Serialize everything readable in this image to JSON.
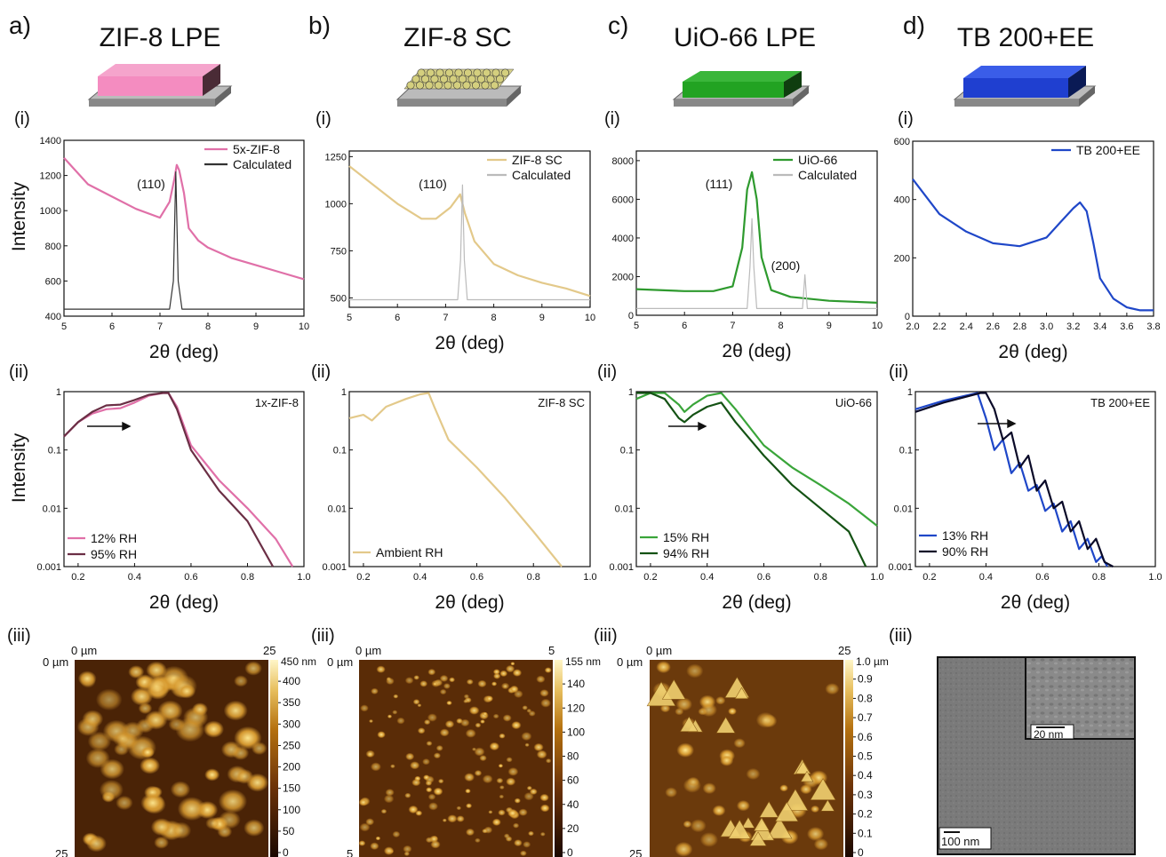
{
  "panels": [
    {
      "letter": "a)",
      "title": "ZIF-8 LPE",
      "color": "#e070a8"
    },
    {
      "letter": "b)",
      "title": "ZIF-8 SC",
      "color": "#e3c98a"
    },
    {
      "letter": "c)",
      "title": "UiO-66 LPE",
      "color": "#2e9a2e"
    },
    {
      "letter": "d)",
      "title": "TB 200+EE",
      "color": "#1f47c8"
    }
  ],
  "labels": {
    "i": "(i)",
    "ii": "(ii)",
    "iii": "(iii)",
    "intensity": "Intensity",
    "two_theta": "2θ (deg)"
  },
  "chart_data": [
    {
      "id": "a-i",
      "type": "line",
      "xlim": [
        5,
        10
      ],
      "ylim": [
        400,
        1400
      ],
      "xticks": [
        "5",
        "6",
        "7",
        "8",
        "9",
        "10"
      ],
      "yticks": [
        "400",
        "600",
        "800",
        "1000",
        "1200",
        "1400"
      ],
      "xlabel": "2θ (deg)",
      "ylabel": "Intensity",
      "peak_label": "(110)",
      "series": [
        {
          "name": "5x-ZIF-8",
          "color": "#e070a8",
          "x": [
            5.0,
            5.5,
            6.0,
            6.5,
            7.0,
            7.2,
            7.3,
            7.35,
            7.4,
            7.5,
            7.6,
            7.8,
            8.0,
            8.5,
            9.0,
            9.5,
            10.0
          ],
          "y": [
            1300,
            1150,
            1080,
            1010,
            960,
            1050,
            1180,
            1260,
            1230,
            1100,
            900,
            830,
            790,
            730,
            690,
            650,
            610
          ]
        },
        {
          "name": "Calculated",
          "color": "#333333",
          "x": [
            5.0,
            7.2,
            7.28,
            7.33,
            7.38,
            7.46,
            10.0
          ],
          "y": [
            440,
            440,
            600,
            1220,
            600,
            440,
            440
          ]
        }
      ]
    },
    {
      "id": "b-i",
      "type": "line",
      "xlim": [
        5,
        10
      ],
      "ylim": [
        450,
        1280
      ],
      "xticks": [
        "5",
        "6",
        "7",
        "8",
        "9",
        "10"
      ],
      "yticks": [
        "500",
        "750",
        "1000",
        "1250"
      ],
      "xlabel": "2θ (deg)",
      "peak_label": "(110)",
      "series": [
        {
          "name": "ZIF-8 SC",
          "color": "#e3c98a",
          "x": [
            5.0,
            5.5,
            6.0,
            6.5,
            6.8,
            7.1,
            7.3,
            7.4,
            7.6,
            8.0,
            8.5,
            9.0,
            9.5,
            10.0
          ],
          "y": [
            1200,
            1100,
            1000,
            920,
            920,
            980,
            1050,
            950,
            800,
            680,
            620,
            580,
            550,
            510
          ]
        },
        {
          "name": "Calculated",
          "color": "#bbbbbb",
          "x": [
            5.0,
            7.25,
            7.31,
            7.35,
            7.39,
            7.45,
            10.0
          ],
          "y": [
            490,
            490,
            700,
            1100,
            700,
            490,
            490
          ]
        }
      ]
    },
    {
      "id": "c-i",
      "type": "line",
      "xlim": [
        5,
        10
      ],
      "ylim": [
        0,
        8500
      ],
      "xticks": [
        "5",
        "6",
        "7",
        "8",
        "9",
        "10"
      ],
      "yticks": [
        "0",
        "2000",
        "4000",
        "6000",
        "8000"
      ],
      "xlabel": "2θ (deg)",
      "peak_labels": [
        "(111)",
        "(200)"
      ],
      "series": [
        {
          "name": "UiO-66",
          "color": "#2e9a2e",
          "x": [
            5.0,
            6.0,
            6.6,
            7.0,
            7.2,
            7.3,
            7.4,
            7.5,
            7.6,
            7.8,
            8.2,
            9.0,
            10.0
          ],
          "y": [
            1350,
            1250,
            1250,
            1500,
            3500,
            6500,
            7400,
            6000,
            3000,
            1300,
            950,
            750,
            650
          ]
        },
        {
          "name": "Calculated",
          "color": "#bbbbbb",
          "x": [
            5.0,
            7.3,
            7.36,
            7.4,
            7.44,
            7.5,
            8.45,
            8.5,
            8.55,
            10.0
          ],
          "y": [
            350,
            350,
            2500,
            5000,
            2500,
            350,
            350,
            2100,
            350,
            350
          ]
        }
      ]
    },
    {
      "id": "d-i",
      "type": "line",
      "xlim": [
        2.0,
        3.8
      ],
      "ylim": [
        0,
        600
      ],
      "xticks": [
        "2.0",
        "2.2",
        "2.4",
        "2.6",
        "2.8",
        "3.0",
        "3.2",
        "3.4",
        "3.6",
        "3.8"
      ],
      "yticks": [
        "0",
        "200",
        "400",
        "600"
      ],
      "xlabel": "2θ (deg)",
      "series": [
        {
          "name": "TB 200+EE",
          "color": "#1f47c8",
          "x": [
            2.0,
            2.2,
            2.4,
            2.6,
            2.8,
            3.0,
            3.1,
            3.2,
            3.25,
            3.3,
            3.35,
            3.4,
            3.5,
            3.6,
            3.7,
            3.8
          ],
          "y": [
            470,
            350,
            290,
            250,
            240,
            270,
            320,
            370,
            390,
            360,
            250,
            130,
            60,
            30,
            20,
            20
          ]
        }
      ]
    },
    {
      "id": "a-ii",
      "type": "line",
      "log_y": true,
      "xlim": [
        0.15,
        1.0
      ],
      "ylim": [
        0.001,
        1
      ],
      "xticks": [
        "0.2",
        "0.4",
        "0.6",
        "0.8",
        "1.0"
      ],
      "yticks": [
        "0.001",
        "0.01",
        "0.1",
        "1"
      ],
      "xlabel": "2θ (deg)",
      "ylabel": "Intensity",
      "inset_label": "1x-ZIF-8",
      "series": [
        {
          "name": "12% RH",
          "color": "#e070a8",
          "x": [
            0.15,
            0.2,
            0.25,
            0.3,
            0.35,
            0.4,
            0.45,
            0.5,
            0.52,
            0.55,
            0.6,
            0.7,
            0.8,
            0.9,
            0.96
          ],
          "y": [
            0.17,
            0.3,
            0.42,
            0.5,
            0.52,
            0.65,
            0.85,
            0.95,
            0.95,
            0.55,
            0.12,
            0.03,
            0.01,
            0.003,
            0.001
          ]
        },
        {
          "name": "95% RH",
          "color": "#6b2f45",
          "x": [
            0.15,
            0.2,
            0.25,
            0.3,
            0.35,
            0.4,
            0.45,
            0.5,
            0.52,
            0.55,
            0.6,
            0.7,
            0.8,
            0.89
          ],
          "y": [
            0.17,
            0.3,
            0.45,
            0.58,
            0.6,
            0.72,
            0.88,
            0.95,
            0.95,
            0.5,
            0.1,
            0.02,
            0.006,
            0.001
          ]
        }
      ]
    },
    {
      "id": "b-ii",
      "type": "line",
      "log_y": true,
      "xlim": [
        0.15,
        1.0
      ],
      "ylim": [
        0.001,
        1
      ],
      "xticks": [
        "0.2",
        "0.4",
        "0.6",
        "0.8",
        "1.0"
      ],
      "yticks": [
        "0.001",
        "0.01",
        "0.1",
        "1"
      ],
      "xlabel": "2θ (deg)",
      "inset_label": "ZIF-8 SC",
      "series": [
        {
          "name": "Ambient RH",
          "color": "#e3c98a",
          "x": [
            0.15,
            0.2,
            0.23,
            0.28,
            0.35,
            0.4,
            0.43,
            0.45,
            0.5,
            0.6,
            0.7,
            0.8,
            0.9
          ],
          "y": [
            0.35,
            0.4,
            0.32,
            0.55,
            0.75,
            0.9,
            0.95,
            0.55,
            0.15,
            0.05,
            0.015,
            0.004,
            0.001
          ]
        }
      ]
    },
    {
      "id": "c-ii",
      "type": "line",
      "log_y": true,
      "xlim": [
        0.15,
        1.0
      ],
      "ylim": [
        0.001,
        1
      ],
      "xticks": [
        "0.2",
        "0.4",
        "0.6",
        "0.8",
        "1.0"
      ],
      "yticks": [
        "0.001",
        "0.01",
        "0.1",
        "1"
      ],
      "xlabel": "2θ (deg)",
      "inset_label": "UiO-66",
      "series": [
        {
          "name": "15% RH",
          "color": "#3aa53a",
          "x": [
            0.15,
            0.2,
            0.25,
            0.3,
            0.32,
            0.35,
            0.4,
            0.45,
            0.5,
            0.6,
            0.7,
            0.8,
            0.9,
            1.0
          ],
          "y": [
            0.75,
            0.95,
            0.95,
            0.6,
            0.45,
            0.6,
            0.85,
            0.95,
            0.5,
            0.12,
            0.05,
            0.025,
            0.012,
            0.005
          ]
        },
        {
          "name": "94% RH",
          "color": "#145214",
          "x": [
            0.15,
            0.2,
            0.25,
            0.3,
            0.32,
            0.35,
            0.4,
            0.45,
            0.5,
            0.6,
            0.7,
            0.8,
            0.9,
            0.96
          ],
          "y": [
            0.95,
            0.95,
            0.75,
            0.35,
            0.3,
            0.4,
            0.55,
            0.65,
            0.3,
            0.08,
            0.025,
            0.01,
            0.004,
            0.001
          ]
        }
      ]
    },
    {
      "id": "d-ii",
      "type": "line",
      "log_y": true,
      "xlim": [
        0.15,
        1.0
      ],
      "ylim": [
        0.001,
        1
      ],
      "xticks": [
        "0.2",
        "0.4",
        "0.6",
        "0.8",
        "1.0"
      ],
      "yticks": [
        "0.001",
        "0.01",
        "0.1",
        "1"
      ],
      "xlabel": "2θ (deg)",
      "inset_label": "TB 200+EE",
      "series": [
        {
          "name": "13% RH",
          "color": "#1f47c8",
          "x": [
            0.15,
            0.25,
            0.35,
            0.37,
            0.4,
            0.43,
            0.46,
            0.49,
            0.52,
            0.55,
            0.58,
            0.61,
            0.64,
            0.67,
            0.7,
            0.73,
            0.76,
            0.79,
            0.81,
            0.83
          ],
          "y": [
            0.5,
            0.7,
            0.9,
            0.95,
            0.35,
            0.1,
            0.15,
            0.04,
            0.06,
            0.02,
            0.025,
            0.009,
            0.012,
            0.004,
            0.006,
            0.002,
            0.003,
            0.0012,
            0.0015,
            0.001
          ]
        },
        {
          "name": "90% RH",
          "color": "#0a0a28",
          "x": [
            0.15,
            0.25,
            0.38,
            0.4,
            0.43,
            0.46,
            0.49,
            0.52,
            0.55,
            0.58,
            0.61,
            0.64,
            0.67,
            0.7,
            0.73,
            0.76,
            0.79,
            0.82,
            0.85
          ],
          "y": [
            0.45,
            0.65,
            0.95,
            0.95,
            0.5,
            0.15,
            0.2,
            0.05,
            0.08,
            0.02,
            0.03,
            0.01,
            0.013,
            0.004,
            0.006,
            0.002,
            0.003,
            0.0012,
            0.001
          ]
        }
      ]
    }
  ],
  "afm": [
    {
      "x0": "0 µm",
      "x1": "25",
      "y0": "0 µm",
      "y1": "25",
      "unit": "450 nm",
      "ticks": [
        "400",
        "350",
        "300",
        "250",
        "200",
        "150",
        "100",
        "50",
        "0"
      ],
      "palette": [
        "#1a0800",
        "#6b3208",
        "#b5710f",
        "#e8c060",
        "#fff6c8"
      ]
    },
    {
      "x0": "0 µm",
      "x1": "5",
      "y0": "0 µm",
      "y1": "5",
      "unit": "155 nm",
      "ticks": [
        "140",
        "120",
        "100",
        "80",
        "60",
        "40",
        "20",
        "0"
      ],
      "palette": [
        "#1a0800",
        "#6b3208",
        "#b5710f",
        "#e8c060",
        "#fff6c8"
      ]
    },
    {
      "x0": "0 µm",
      "x1": "25",
      "y0": "0 µm",
      "y1": "25",
      "unit": "1.0 µm",
      "ticks": [
        "0.9",
        "0.8",
        "0.7",
        "0.6",
        "0.5",
        "0.4",
        "0.3",
        "0.2",
        "0.1",
        "0"
      ],
      "palette": [
        "#1a0800",
        "#6b3208",
        "#b5710f",
        "#e8c060",
        "#fff6c8"
      ]
    }
  ],
  "sem": {
    "scale_main": "100 nm",
    "scale_inset": "20 nm"
  }
}
